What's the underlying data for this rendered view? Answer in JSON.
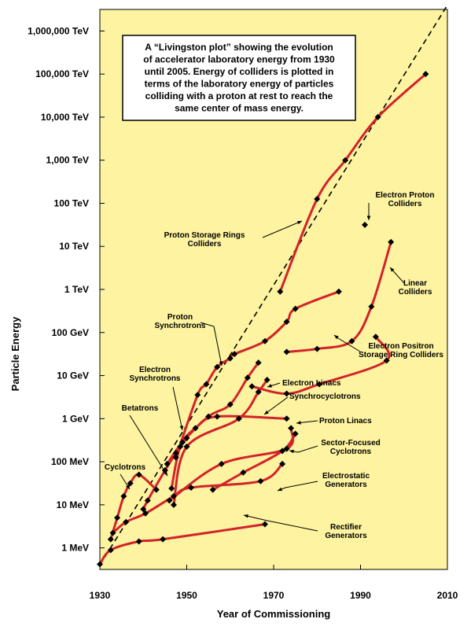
{
  "chart_data": {
    "type": "line",
    "title": "",
    "xlabel": "Year of Commissioning",
    "ylabel": "Particle Energy",
    "xlim": [
      1930,
      2010
    ],
    "ylim_log10_eV": [
      5.5,
      12.5
    ],
    "x_ticks": [
      "1930",
      "1950",
      "1970",
      "1990",
      "2010"
    ],
    "y_ticks": [
      {
        "label": "1 MeV",
        "log10_eV": 6
      },
      {
        "label": "10 MeV",
        "log10_eV": 7
      },
      {
        "label": "100 MeV",
        "log10_eV": 8
      },
      {
        "label": "1 GeV",
        "log10_eV": 9
      },
      {
        "label": "10 GeV",
        "log10_eV": 10
      },
      {
        "label": "100 GeV",
        "log10_eV": 11
      },
      {
        "label": "1 TeV",
        "log10_eV": 12
      },
      {
        "label": "10 TeV",
        "log10_eV": 13
      },
      {
        "label": "100 TeV",
        "log10_eV": 14
      },
      {
        "label": "1,000 TeV",
        "log10_eV": 15
      },
      {
        "label": "10,000 TeV",
        "log10_eV": 16
      },
      {
        "label": "100,000 TeV",
        "log10_eV": 17
      },
      {
        "label": "1,000,000 TeV",
        "log10_eV": 18
      }
    ],
    "caption": [
      "A “Livingston plot” showing the evolution",
      "of accelerator laboratory energy from 1930",
      "until 2005. Energy of colliders is plotted in",
      "terms of the laboratory energy of particles",
      "colliding with a proton at rest to reach the",
      "same center of mass energy."
    ],
    "trend_line": {
      "x": [
        1930,
        2010
      ],
      "y_log10_eV": [
        5.6,
        18.6
      ]
    },
    "series": [
      {
        "key": "rectifier",
        "label": [
          "Rectifier",
          "Generators"
        ],
        "x": [
          1930,
          1932.5,
          1939,
          1944.5,
          1968
        ],
        "y": [
          5.62,
          5.95,
          6.15,
          6.2,
          6.55
        ]
      },
      {
        "key": "electrostatic",
        "label": [
          "Electrostatic",
          "Generators"
        ],
        "x": [
          1933,
          1936,
          1940.5,
          1947,
          1951,
          1967,
          1972
        ],
        "y": [
          6.35,
          6.6,
          6.8,
          7.2,
          7.4,
          7.55,
          7.95
        ]
      },
      {
        "key": "cyclotrons",
        "label": [
          "Cyclotrons"
        ],
        "x": [
          1932.5,
          1934,
          1935.5,
          1937,
          1939,
          1943
        ],
        "y": [
          6.2,
          6.7,
          7.2,
          7.5,
          7.7,
          7.35
        ]
      },
      {
        "key": "betatrons",
        "label": [
          "Betatrons"
        ],
        "x": [
          1940,
          1941,
          1945,
          1947.5,
          1950
        ],
        "y": [
          6.9,
          7.1,
          7.8,
          8.2,
          8.55
        ]
      },
      {
        "key": "proton-linacs",
        "label": [
          "Proton Linacs"
        ],
        "x": [
          1946,
          1958,
          1973,
          1974
        ],
        "y": [
          7.1,
          7.95,
          8.3,
          8.78
        ]
      },
      {
        "key": "sector-focused",
        "label": [
          "Sector-Focused",
          "Cyclotrons"
        ],
        "x": [
          1956,
          1963,
          1972,
          1975
        ],
        "y": [
          7.35,
          7.75,
          8.25,
          8.65
        ]
      },
      {
        "key": "synchrocyclotrons",
        "label": [
          "Synchrocyclotrons"
        ],
        "x": [
          1946.5,
          1948.5,
          1952,
          1957,
          1973
        ],
        "y": [
          7.38,
          8.35,
          8.78,
          9.05,
          9.0
        ]
      },
      {
        "key": "electron-linacs",
        "label": [
          "Electron Linacs"
        ],
        "x": [
          1947,
          1950,
          1962,
          1966.5,
          1968.5
        ],
        "y": [
          7.0,
          8.35,
          9.0,
          9.62,
          9.9
        ]
      },
      {
        "key": "electron-synchrotrons",
        "label": [
          "Electron",
          "Synchrotrons"
        ],
        "x": [
          1945.5,
          1949,
          1955,
          1960,
          1964,
          1966.5
        ],
        "y": [
          7.95,
          8.45,
          9.05,
          9.33,
          9.95,
          10.3
        ]
      },
      {
        "key": "proton-synchrotrons",
        "label": [
          "Proton",
          "Synchrotrons"
        ],
        "x": [
          1947.5,
          1952.5,
          1954.5,
          1957,
          1960,
          1961,
          1968,
          1973,
          1975,
          1985
        ],
        "y": [
          8.1,
          9.55,
          9.8,
          10.2,
          10.4,
          10.5,
          10.8,
          11.25,
          11.55,
          11.95
        ]
      },
      {
        "key": "electron-positron",
        "label": [
          "Electron Positron",
          "Storage Ring Colliders"
        ],
        "x": [
          1965,
          1973,
          1980.5,
          1996,
          1993.5
        ],
        "y": [
          9.75,
          9.58,
          9.8,
          10.35,
          10.9
        ]
      },
      {
        "key": "linear-colliders",
        "label": [
          "Linear",
          "Colliders"
        ],
        "x": [
          1973,
          1980,
          1988,
          1992.5,
          1997
        ],
        "y": [
          10.55,
          10.62,
          10.8,
          11.6,
          13.1
        ]
      },
      {
        "key": "proton-storage",
        "label": [
          "Proton Storage Rings",
          "Colliders"
        ],
        "x": [
          1971.5,
          1980,
          1986.5,
          1994,
          2005
        ],
        "y": [
          11.95,
          14.1,
          15.0,
          16.0,
          17.0
        ]
      },
      {
        "key": "electron-proton",
        "label": [
          "Electron Proton",
          "Colliders"
        ],
        "x": [
          1991
        ],
        "y": [
          13.5
        ]
      }
    ]
  }
}
